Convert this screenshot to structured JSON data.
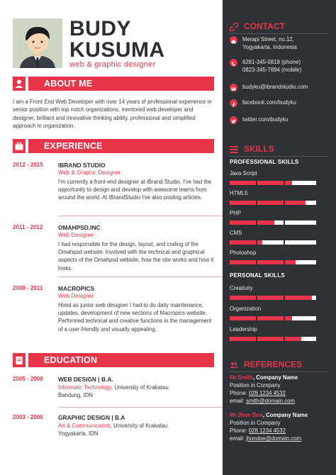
{
  "header": {
    "name_first": "BUDY",
    "name_last": "KUSUMA",
    "role": "web & graphic designer"
  },
  "about": {
    "heading": "ABOUT ME",
    "text": "I am a Front End Web Developer with over 14 years of professional experience in senior position with top notch organizations, mentored web developer and designer, brilliant and innovative thinking ability, professional and simplified approach in organization."
  },
  "experience": {
    "heading": "EXPERIENCE",
    "items": [
      {
        "dates": "2012 - 2015",
        "company": "IBRAND STUDIO",
        "position": "Web & Graphic Designer",
        "desc": "I'm currently a front-end designer at iBrand Studio. I've had the opportunity to design and develop with awesome teams from around the world. At iBrandStudio I've also posting articles."
      },
      {
        "dates": "2011 - 2012",
        "company": "OMAHPSD.INC",
        "position": "Web Designer",
        "desc": "I had responsible for the design, layout, and coding of the Omahpsd website. Involved with the technical and graphical aspects of the Omahpsd website, how the site works and how it looks."
      },
      {
        "dates": "2009 - 2011",
        "company": "MACROPICS",
        "position": "Web Designer",
        "desc": "Hired as junior web designer I had to do daily maintenance, updates, development of new sections of Macropics website. Performed technical and creative functions in the management of a user-friendly and visually appealing."
      }
    ]
  },
  "education": {
    "heading": "EDUCATION",
    "items": [
      {
        "dates": "2005 - 2008",
        "degree": "WEB DESIGN | B.A.",
        "major": "Informatic Technology",
        "school": ", University of Krakatau",
        "location": "Bandung, IDN"
      },
      {
        "dates": "2003 - 2006",
        "degree": "GRAPHIC DESIGN | B.A",
        "major": "Art & Communication",
        "school": ", University of Krakatau",
        "location": "Yogyakarta, IDN"
      }
    ]
  },
  "contact": {
    "heading": "CONTACT",
    "address_1": "Merapi Street, no.12,",
    "address_2": "Yogyakarta, Indonesia",
    "phone_1": "6281-345-0818 (phone)",
    "phone_2": "0823-345-7894 (mobile)",
    "email": "budyku@ibrandstudio.com",
    "facebook": "facebook.com/budyku",
    "twitter": "twitter.com/budyku"
  },
  "skills": {
    "heading": "SKILLS",
    "professional_heading": "PROFESSIONAL SKILLS",
    "professional": [
      {
        "name": "Java Script",
        "level": 0.72
      },
      {
        "name": "HTML5",
        "level": 0.88
      },
      {
        "name": "PHP",
        "level": 0.52
      },
      {
        "name": "CMS",
        "level": 0.38
      },
      {
        "name": "Photoshop",
        "level": 0.76
      }
    ],
    "personal_heading": "PERSONAL SKILLS",
    "personal": [
      {
        "name": "Creativity",
        "level": 0.95
      },
      {
        "name": "Organization",
        "level": 0.72
      },
      {
        "name": "Leadership",
        "level": 0.83
      }
    ]
  },
  "references": {
    "heading": "REFERENCES",
    "items": [
      {
        "name": "Mr.Smith",
        "company": ", Company Name",
        "position": "Position in Company",
        "phone_label": "Phone: ",
        "phone": "028 1234 4532",
        "email_label": "email: ",
        "email": "smith@domain.com"
      },
      {
        "name": "Mr.Jhon Doe",
        "company": ", Company Name",
        "position": "Position in Company",
        "phone_label": "Phone: ",
        "phone": "028 1234 4532",
        "email_label": "email: ",
        "email": "jhondoe@domain.com"
      }
    ]
  },
  "colors": {
    "accent": "#e8354a",
    "sidebar": "#2e3136",
    "text": "#3a3a3a"
  }
}
